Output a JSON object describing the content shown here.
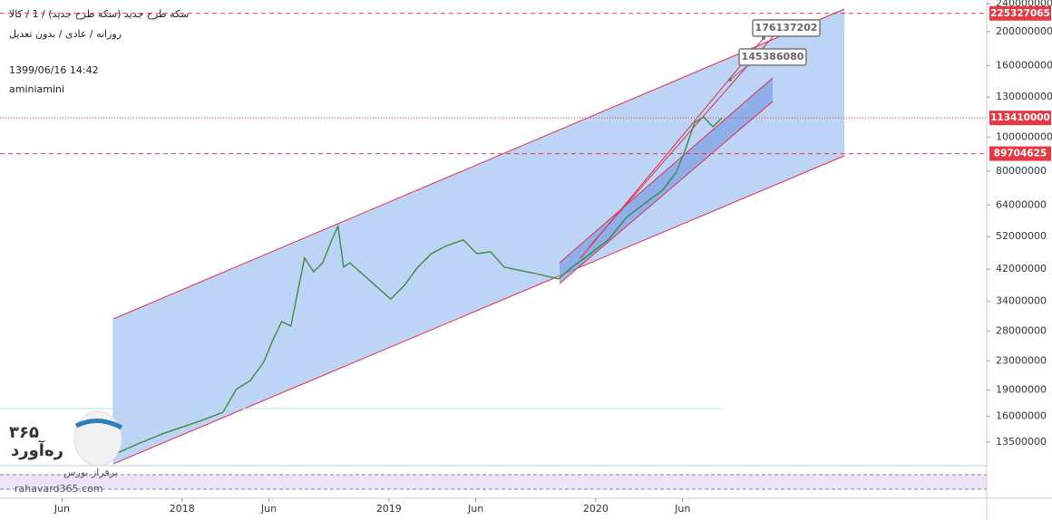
{
  "header": {
    "title": "سکه طرح جدید (سکه طرح جدید) / 1 / کالا",
    "subtitle": "روزانه / عادی / بدون تعدیل",
    "timestamp": "1399/06/16 14:42",
    "author": "aminiamini"
  },
  "watermark": {
    "number": "۳۶۵",
    "brand": "ره‌آورد",
    "tagline": "برفراز بورس",
    "site": "rahavard365.com"
  },
  "chart_data": {
    "type": "line",
    "x": [
      2017.693,
      2017.781,
      2017.912,
      2018.088,
      2018.197,
      2018.263,
      2018.329,
      2018.395,
      2018.439,
      2018.482,
      2018.526,
      2018.57,
      2018.592,
      2018.636,
      2018.68,
      2018.724,
      2018.754,
      2018.781,
      2018.811,
      2019.009,
      2019.075,
      2019.14,
      2019.206,
      2019.272,
      2019.36,
      2019.425,
      2019.491,
      2019.557,
      2019.623,
      2019.711,
      2019.82,
      2019.886,
      2019.974,
      2020.061,
      2020.149,
      2020.237,
      2020.325,
      2020.39,
      2020.434,
      2020.478,
      2020.522,
      2020.566,
      2020.61
    ],
    "series": [
      {
        "color": "#3d8b40",
        "values": [
          12600000,
          13300000,
          14300000,
          15500000,
          16400000,
          19100000,
          20200000,
          22800000,
          26400000,
          29800000,
          28900000,
          38900000,
          45200000,
          41300000,
          43800000,
          50900000,
          55700000,
          42600000,
          43800000,
          34500000,
          37800000,
          42600000,
          46500000,
          48800000,
          50900000,
          46500000,
          47100000,
          42600000,
          41800000,
          40800000,
          39400000,
          42600000,
          46500000,
          50900000,
          59100000,
          64700000,
          70700000,
          79600000,
          92400000,
          110000000,
          114000000,
          107000000,
          113410000
        ]
      }
    ],
    "xlim": [
      2017.12,
      2021.89
    ],
    "xticks": [
      {
        "value": 2017.42,
        "label": "Jun"
      },
      2018,
      {
        "value": 2018.42,
        "label": "Jun"
      },
      2019,
      {
        "value": 2019.42,
        "label": "Jun"
      },
      2020,
      {
        "value": 2020.42,
        "label": "Jun"
      }
    ],
    "ylim": [
      11700000,
      246000000
    ],
    "yticks": [
      13500000,
      16000000,
      19000000,
      23000000,
      28000000,
      34000000,
      42000000,
      52000000,
      64000000,
      80000000,
      100000000,
      130000000,
      160000000,
      200000000,
      240000000
    ],
    "log_scale": true,
    "hlines": [
      {
        "value": 225327065,
        "color": "#e53945",
        "style": "dashed"
      },
      {
        "value": 113410000,
        "color": "#e53945",
        "style": "dotted"
      },
      {
        "value": 89704625,
        "color": "#e53945",
        "style": "dashed"
      }
    ],
    "callouts": [
      176137202,
      145386080
    ]
  }
}
